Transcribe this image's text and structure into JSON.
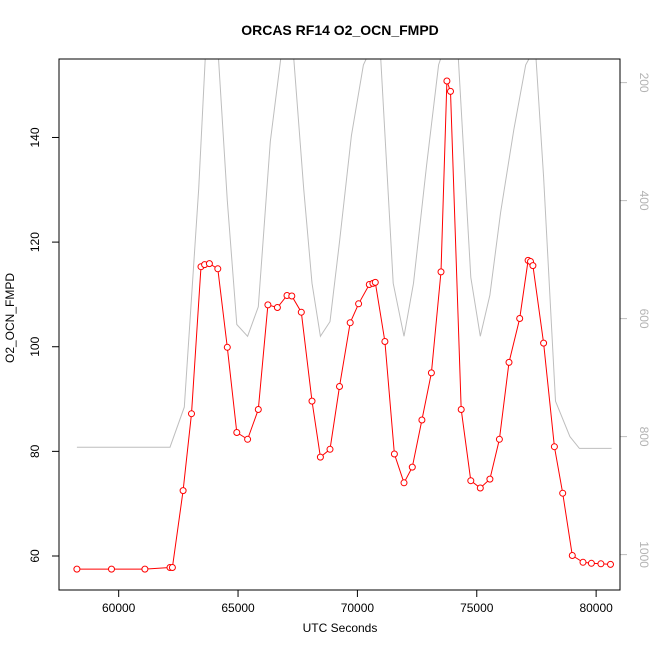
{
  "chart_data": {
    "type": "line",
    "title": "ORCAS RF14 O2_OCN_FMPD",
    "xlabel": "UTC Seconds",
    "ylabel": "O2_OCN_FMPD",
    "xlim": [
      57500,
      81000
    ],
    "ylim": [
      53.5,
      155
    ],
    "y2lim": [
      1060,
      160
    ],
    "x_ticks": [
      60000,
      65000,
      70000,
      75000,
      80000
    ],
    "y_ticks": [
      60,
      80,
      100,
      120,
      140
    ],
    "y2_ticks": [
      200,
      400,
      600,
      800,
      1000
    ],
    "colors": {
      "series_primary": "#ff0000",
      "series_secondary": "#bebebe"
    },
    "series": [
      {
        "axis": "left",
        "style": "line+circles",
        "x": [
          58250,
          59700,
          61100,
          62150,
          62250,
          62700,
          63050,
          63450,
          63600,
          63800,
          64150,
          64550,
          64950,
          65400,
          65850,
          66250,
          66650,
          67050,
          67250,
          67650,
          68100,
          68450,
          68850,
          69250,
          69700,
          70050,
          70500,
          70650,
          70750,
          71150,
          71550,
          71950,
          72300,
          72700,
          73100,
          73500,
          73750,
          73900,
          74350,
          74750,
          75150,
          75550,
          75950,
          76350,
          76800,
          77150,
          77250,
          77350,
          77800,
          78250,
          78600,
          79000,
          79450,
          79800,
          80200,
          80600
        ],
        "y": [
          57.5,
          57.5,
          57.5,
          57.8,
          57.8,
          72.5,
          87.2,
          115.3,
          115.7,
          115.9,
          114.9,
          99.9,
          83.6,
          82.3,
          88.0,
          108.0,
          107.5,
          109.8,
          109.7,
          106.6,
          89.6,
          78.9,
          80.4,
          92.4,
          104.6,
          108.2,
          111.9,
          112.1,
          112.3,
          101.0,
          79.5,
          74.0,
          77.0,
          86.0,
          95.0,
          114.3,
          150.8,
          148.8,
          88.0,
          74.4,
          73.0,
          74.7,
          82.3,
          97.0,
          105.4,
          116.5,
          116.3,
          115.5,
          100.7,
          80.9,
          72.0,
          60.1,
          58.8,
          58.6,
          58.5,
          58.4
        ]
      },
      {
        "axis": "right",
        "style": "line",
        "x": [
          58250,
          62150,
          62750,
          63350,
          63650,
          64150,
          64550,
          64950,
          65400,
          65850,
          66350,
          66850,
          67300,
          67750,
          68100,
          68450,
          68850,
          69250,
          69750,
          70250,
          70600,
          70950,
          71500,
          71950,
          72350,
          72900,
          73400,
          73650,
          74200,
          74750,
          75150,
          75550,
          76000,
          76550,
          77050,
          77450,
          77800,
          78300,
          78900,
          79300,
          80650
        ],
        "y": [
          818,
          818,
          750,
          380,
          140,
          140,
          400,
          610,
          630,
          580,
          300,
          140,
          140,
          380,
          540,
          630,
          605,
          470,
          290,
          170,
          140,
          140,
          540,
          630,
          540,
          340,
          170,
          140,
          140,
          530,
          630,
          560,
          420,
          280,
          170,
          140,
          360,
          740,
          800,
          820,
          820
        ]
      }
    ]
  }
}
